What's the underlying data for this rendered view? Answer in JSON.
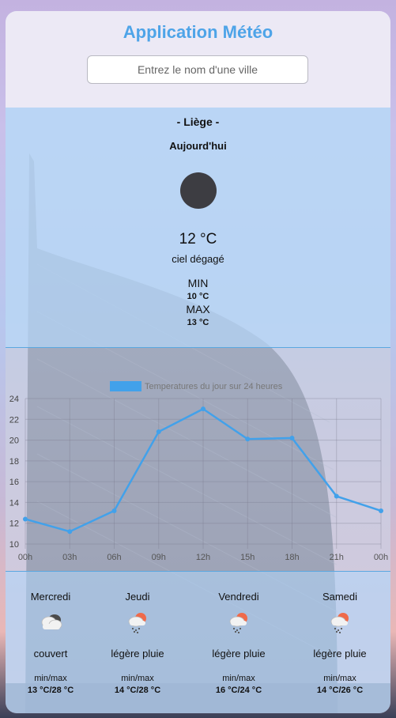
{
  "header": {
    "title": "Application Météo",
    "search_placeholder": "Entrez le nom d'une ville",
    "search_value": ""
  },
  "today": {
    "city": "- Liège -",
    "label": "Aujourd'hui",
    "icon": "moon-icon",
    "temperature": "12 °C",
    "description": "ciel dégagé",
    "min_label": "MIN",
    "min_value": "10 °C",
    "max_label": "MAX",
    "max_value": "13 °C"
  },
  "chart_data": {
    "type": "line",
    "title": "",
    "legend": "Temperatures du jour sur 24 heures",
    "legend_position": "top",
    "categories": [
      "00h",
      "03h",
      "06h",
      "09h",
      "12h",
      "15h",
      "18h",
      "21h",
      "00h"
    ],
    "series": [
      {
        "name": "Temperatures du jour sur 24 heures",
        "values": [
          12.4,
          11.2,
          13.2,
          20.8,
          23.0,
          20.1,
          20.2,
          14.6,
          13.2
        ],
        "color": "#42a1ea"
      }
    ],
    "yticks": [
      10,
      12,
      14,
      16,
      18,
      20,
      22,
      24
    ],
    "ylim": [
      10,
      24
    ],
    "grid": true,
    "xlabel": "",
    "ylabel": ""
  },
  "forecast": [
    {
      "day": "Mercredi",
      "icon": "cloudy-icon",
      "description": "couvert",
      "minmax_label": "min/max",
      "range": "13 °C/28 °C"
    },
    {
      "day": "Jeudi",
      "icon": "light-rain-icon",
      "description": "légère pluie",
      "minmax_label": "min/max",
      "range": "14 °C/28 °C"
    },
    {
      "day": "Vendredi",
      "icon": "light-rain-icon",
      "description": "légère pluie",
      "minmax_label": "min/max",
      "range": "16 °C/24 °C"
    },
    {
      "day": "Samedi",
      "icon": "light-rain-icon",
      "description": "légère pluie",
      "minmax_label": "min/max",
      "range": "14 °C/26 °C"
    }
  ],
  "colors": {
    "title": "#4ea4e8",
    "line": "#42a1ea",
    "panel": "#bbd8f8"
  }
}
